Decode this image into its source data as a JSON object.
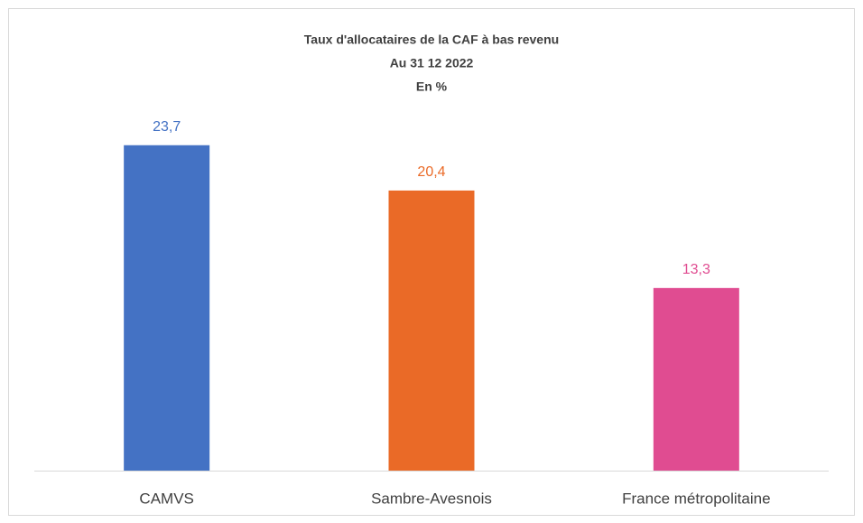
{
  "chart_data": {
    "type": "bar",
    "title": "Taux d'allocataires de la CAF à bas revenu",
    "subtitle": "Au 31 12 2022",
    "unit_label": "En %",
    "categories": [
      "CAMVS",
      "Sambre-Avesnois",
      "France métropolitaine"
    ],
    "values": [
      23.7,
      20.4,
      13.3
    ],
    "value_labels": [
      "23,7",
      "20,4",
      "13,3"
    ],
    "colors": [
      "#4472c4",
      "#ea6a27",
      "#e04c91"
    ]
  }
}
